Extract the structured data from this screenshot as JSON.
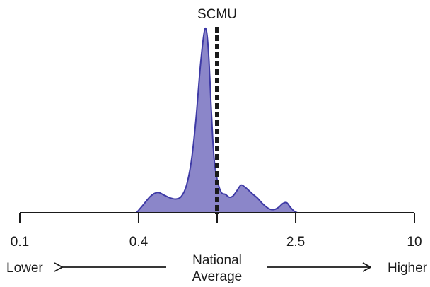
{
  "chart_data": {
    "type": "area",
    "title": "SCMU",
    "x_scale": "log",
    "xlim": [
      0.1,
      10
    ],
    "ticks": [
      {
        "value": 0.1,
        "label": "0.1"
      },
      {
        "value": 0.4,
        "label": "0.4"
      },
      {
        "value": 1.0,
        "label": ""
      },
      {
        "value": 2.5,
        "label": "2.5"
      },
      {
        "value": 10,
        "label": "10"
      }
    ],
    "reference_line": {
      "value": 1.0
    },
    "series": [
      {
        "fill_color": "#8b86c9",
        "line_color": "#3e3aa6",
        "x": [
          0.39,
          0.42,
          0.46,
          0.5,
          0.54,
          0.58,
          0.62,
          0.66,
          0.7,
          0.74,
          0.78,
          0.82,
          0.85,
          0.87,
          0.89,
          0.91,
          0.93,
          0.95,
          0.97,
          1.0,
          1.03,
          1.06,
          1.1,
          1.15,
          1.2,
          1.26,
          1.32,
          1.38,
          1.45,
          1.52,
          1.6,
          1.68,
          1.76,
          1.85,
          1.95,
          2.05,
          2.15,
          2.25,
          2.35,
          2.45,
          2.55
        ],
        "y": [
          0.0,
          0.04,
          0.09,
          0.11,
          0.095,
          0.08,
          0.075,
          0.09,
          0.15,
          0.28,
          0.5,
          0.78,
          0.94,
          1.0,
          0.96,
          0.82,
          0.6,
          0.4,
          0.27,
          0.18,
          0.13,
          0.105,
          0.1,
          0.085,
          0.09,
          0.12,
          0.15,
          0.14,
          0.12,
          0.1,
          0.08,
          0.055,
          0.035,
          0.02,
          0.018,
          0.03,
          0.05,
          0.055,
          0.03,
          0.01,
          0.0
        ]
      }
    ],
    "left_label": "Lower",
    "right_label": "Higher",
    "center_label_line1": "National",
    "center_label_line2": "Average"
  }
}
